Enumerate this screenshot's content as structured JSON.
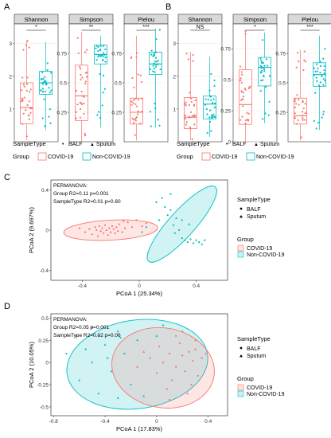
{
  "colors": {
    "covid": "#F8766D",
    "noncovid": "#00BFC4",
    "strip_fill": "#D9D9D9",
    "axis": "#000000",
    "grid": "#EBEBEB"
  },
  "legend_shared": {
    "sample_title": "SampleType",
    "sample_items": [
      "BALF",
      "Sputum"
    ],
    "group_title": "Group",
    "group_items": [
      "COVID-19",
      "Non-COVID-19"
    ]
  },
  "chart_data": [
    {
      "panel": "A",
      "type": "box",
      "facets": [
        {
          "name": "Shannon",
          "sig": "*",
          "ylim": [
            0,
            3.6
          ],
          "yticks": [
            1,
            2,
            3
          ],
          "series": [
            {
              "name": "COVID-19",
              "q1": 0.55,
              "median": 1.05,
              "q3": 1.8,
              "whisker_low": 0.05,
              "whisker_high": 3.1
            },
            {
              "name": "Non-COVID-19",
              "q1": 1.45,
              "median": 1.8,
              "q3": 2.15,
              "whisker_low": 0.35,
              "whisker_high": 3.05
            }
          ]
        },
        {
          "name": "Simpson",
          "sig": "**",
          "ylim": [
            0,
            1.0
          ],
          "yticks": [
            0.25,
            0.5,
            0.75
          ],
          "series": [
            {
              "name": "COVID-19",
              "q1": 0.18,
              "median": 0.39,
              "q3": 0.65,
              "whisker_low": 0.0,
              "whisker_high": 0.93
            },
            {
              "name": "Non-COVID-19",
              "q1": 0.66,
              "median": 0.74,
              "q3": 0.82,
              "whisker_low": 0.12,
              "whisker_high": 0.9
            }
          ]
        },
        {
          "name": "Pielou",
          "sig": "***",
          "ylim": [
            0,
            1.0
          ],
          "yticks": [
            0.25,
            0.5,
            0.75
          ],
          "series": [
            {
              "name": "COVID-19",
              "q1": 0.15,
              "median": 0.25,
              "q3": 0.37,
              "whisker_low": 0.01,
              "whisker_high": 0.9
            },
            {
              "name": "Non-COVID-19",
              "q1": 0.57,
              "median": 0.66,
              "q3": 0.76,
              "whisker_low": 0.12,
              "whisker_high": 0.96
            }
          ]
        }
      ]
    },
    {
      "panel": "B",
      "type": "box",
      "facets": [
        {
          "name": "Shannon",
          "sig": "NS",
          "ylim": [
            0,
            3.6
          ],
          "yticks": [
            1,
            2,
            3
          ],
          "series": [
            {
              "name": "COVID-19",
              "q1": 0.4,
              "median": 0.75,
              "q3": 1.35,
              "whisker_low": 0.05,
              "whisker_high": 2.75
            },
            {
              "name": "Non-COVID-19",
              "q1": 0.7,
              "median": 1.15,
              "q3": 1.4,
              "whisker_low": 0.15,
              "whisker_high": 2.6
            }
          ]
        },
        {
          "name": "Simpson",
          "sig": "*",
          "ylim": [
            0,
            0.95
          ],
          "yticks": [
            0.0,
            0.25,
            0.5,
            0.75
          ],
          "series": [
            {
              "name": "COVID-19",
              "q1": 0.14,
              "median": 0.3,
              "q3": 0.58,
              "whisker_low": 0.0,
              "whisker_high": 0.9
            },
            {
              "name": "Non-COVID-19",
              "q1": 0.45,
              "median": 0.6,
              "q3": 0.68,
              "whisker_low": 0.15,
              "whisker_high": 0.88
            }
          ]
        },
        {
          "name": "Pielou",
          "sig": "***",
          "ylim": [
            0,
            1.0
          ],
          "yticks": [
            0.25,
            0.5,
            0.75
          ],
          "series": [
            {
              "name": "COVID-19",
              "q1": 0.15,
              "median": 0.22,
              "q3": 0.37,
              "whisker_low": 0.01,
              "whisker_high": 0.78
            },
            {
              "name": "Non-COVID-19",
              "q1": 0.47,
              "median": 0.57,
              "q3": 0.67,
              "whisker_low": 0.1,
              "whisker_high": 0.9
            }
          ]
        }
      ]
    },
    {
      "panel": "C",
      "type": "scatter",
      "xlabel": "PCoA 1 (25.34%)",
      "ylabel": "PCoA 2 (9.697%)",
      "xlim": [
        -0.62,
        0.62
      ],
      "ylim": [
        -0.5,
        0.5
      ],
      "xticks": [
        -0.4,
        0.0,
        0.4
      ],
      "yticks": [
        -0.4,
        0.0,
        0.4
      ],
      "annotation": [
        "PERMANOVA:",
        "Group R2=0.11 p=0.001",
        "SampleType R2=0.01 p=0.60"
      ],
      "ellipses": [
        {
          "group": "COVID-19",
          "cx": -0.2,
          "cy": 0.0,
          "rx": 0.33,
          "ry": 0.1,
          "angle": -3
        },
        {
          "group": "Non-COVID-19",
          "cx": 0.3,
          "cy": 0.06,
          "rx": 0.35,
          "ry": 0.13,
          "angle": -48
        }
      ],
      "series": [
        {
          "name": "COVID-19",
          "points": [
            [
              -0.42,
              0.02
            ],
            [
              -0.38,
              -0.02
            ],
            [
              -0.35,
              0.01
            ],
            [
              -0.33,
              -0.04
            ],
            [
              -0.31,
              0.03
            ],
            [
              -0.3,
              0.0
            ],
            [
              -0.29,
              -0.06
            ],
            [
              -0.28,
              0.04
            ],
            [
              -0.27,
              -0.01
            ],
            [
              -0.26,
              0.02
            ],
            [
              -0.25,
              -0.03
            ],
            [
              -0.24,
              0.05
            ],
            [
              -0.23,
              0.0
            ],
            [
              -0.22,
              -0.05
            ],
            [
              -0.21,
              0.02
            ],
            [
              -0.2,
              -0.02
            ],
            [
              -0.19,
              0.04
            ],
            [
              -0.18,
              0.01
            ],
            [
              -0.17,
              -0.03
            ],
            [
              -0.16,
              0.03
            ],
            [
              -0.15,
              -0.01
            ],
            [
              -0.14,
              0.06
            ],
            [
              -0.12,
              -0.02
            ],
            [
              -0.1,
              0.02
            ],
            [
              -0.08,
              0.08
            ],
            [
              -0.05,
              0.03
            ],
            [
              -0.02,
              0.1
            ],
            [
              0.02,
              0.04
            ],
            [
              0.05,
              0.07
            ],
            [
              -0.11,
              0.09
            ]
          ]
        },
        {
          "name": "Non-COVID-19",
          "points": [
            [
              0.12,
              0.28
            ],
            [
              0.16,
              0.32
            ],
            [
              0.18,
              0.23
            ],
            [
              0.2,
              0.15
            ],
            [
              0.22,
              0.2
            ],
            [
              0.24,
              0.05
            ],
            [
              0.26,
              0.12
            ],
            [
              0.28,
              0.0
            ],
            [
              0.3,
              -0.08
            ],
            [
              0.32,
              -0.1
            ],
            [
              0.34,
              -0.12
            ],
            [
              0.36,
              -0.09
            ],
            [
              0.38,
              -0.13
            ],
            [
              0.4,
              -0.1
            ],
            [
              0.42,
              -0.12
            ],
            [
              0.44,
              -0.14
            ],
            [
              0.46,
              -0.1
            ],
            [
              0.3,
              0.1
            ],
            [
              0.35,
              0.06
            ],
            [
              0.05,
              0.03
            ],
            [
              0.02,
              -0.02
            ],
            [
              0.14,
              0.1
            ],
            [
              0.25,
              -0.03
            ],
            [
              0.22,
              0.36
            ]
          ]
        }
      ]
    },
    {
      "panel": "D",
      "type": "scatter",
      "xlabel": "PCoA 1 (17.83%)",
      "ylabel": "PCoA 2 (10.05%)",
      "xlim": [
        -0.82,
        0.55
      ],
      "ylim": [
        -0.6,
        0.55
      ],
      "xticks": [
        -0.8,
        -0.4,
        0.0,
        0.4
      ],
      "yticks": [
        -0.5,
        -0.25,
        0.0,
        0.25,
        0.5
      ],
      "annotation": [
        "PERMANOVA:",
        "Group R2=0.05 p=0.001",
        "SampleType R2=0.02 p=0.06"
      ],
      "ellipses": [
        {
          "group": "Non-COVID-19",
          "cx": -0.15,
          "cy": -0.02,
          "rx": 0.55,
          "ry": 0.5,
          "angle": -8
        },
        {
          "group": "COVID-19",
          "cx": 0.05,
          "cy": -0.06,
          "rx": 0.4,
          "ry": 0.45,
          "angle": 10
        }
      ],
      "series": [
        {
          "name": "COVID-19",
          "points": [
            [
              0.3,
              0.15
            ],
            [
              0.25,
              0.12
            ],
            [
              0.2,
              0.08
            ],
            [
              0.28,
              0.02
            ],
            [
              0.15,
              -0.05
            ],
            [
              0.1,
              0.1
            ],
            [
              0.05,
              0.0
            ],
            [
              0.22,
              -0.1
            ],
            [
              0.32,
              -0.15
            ],
            [
              0.18,
              0.22
            ],
            [
              0.12,
              -0.2
            ],
            [
              0.02,
              0.18
            ],
            [
              -0.05,
              0.05
            ],
            [
              0.35,
              0.05
            ],
            [
              0.08,
              -0.3
            ],
            [
              0.27,
              -0.25
            ],
            [
              0.15,
              0.3
            ],
            [
              0.3,
              0.25
            ],
            [
              -0.1,
              0.12
            ],
            [
              0.0,
              -0.12
            ],
            [
              0.2,
              0.35
            ],
            [
              0.38,
              0.1
            ],
            [
              0.1,
              -0.42
            ],
            [
              -0.15,
              -0.05
            ],
            [
              0.24,
              -0.35
            ]
          ]
        },
        {
          "name": "Non-COVID-19",
          "points": [
            [
              -0.5,
              0.4
            ],
            [
              -0.45,
              0.3
            ],
            [
              -0.55,
              0.15
            ],
            [
              -0.4,
              0.2
            ],
            [
              -0.35,
              -0.1
            ],
            [
              -0.3,
              0.35
            ],
            [
              -0.6,
              -0.2
            ],
            [
              -0.25,
              0.1
            ],
            [
              -0.2,
              -0.25
            ],
            [
              -0.45,
              -0.35
            ],
            [
              -0.15,
              0.25
            ],
            [
              -0.5,
              0.0
            ],
            [
              -0.3,
              -0.4
            ],
            [
              0.05,
              0.42
            ],
            [
              -0.7,
              0.1
            ],
            [
              -0.1,
              -0.38
            ],
            [
              -0.38,
              0.05
            ],
            [
              -0.28,
              0.28
            ],
            [
              0.0,
              0.3
            ],
            [
              -0.62,
              0.3
            ]
          ]
        }
      ]
    }
  ]
}
